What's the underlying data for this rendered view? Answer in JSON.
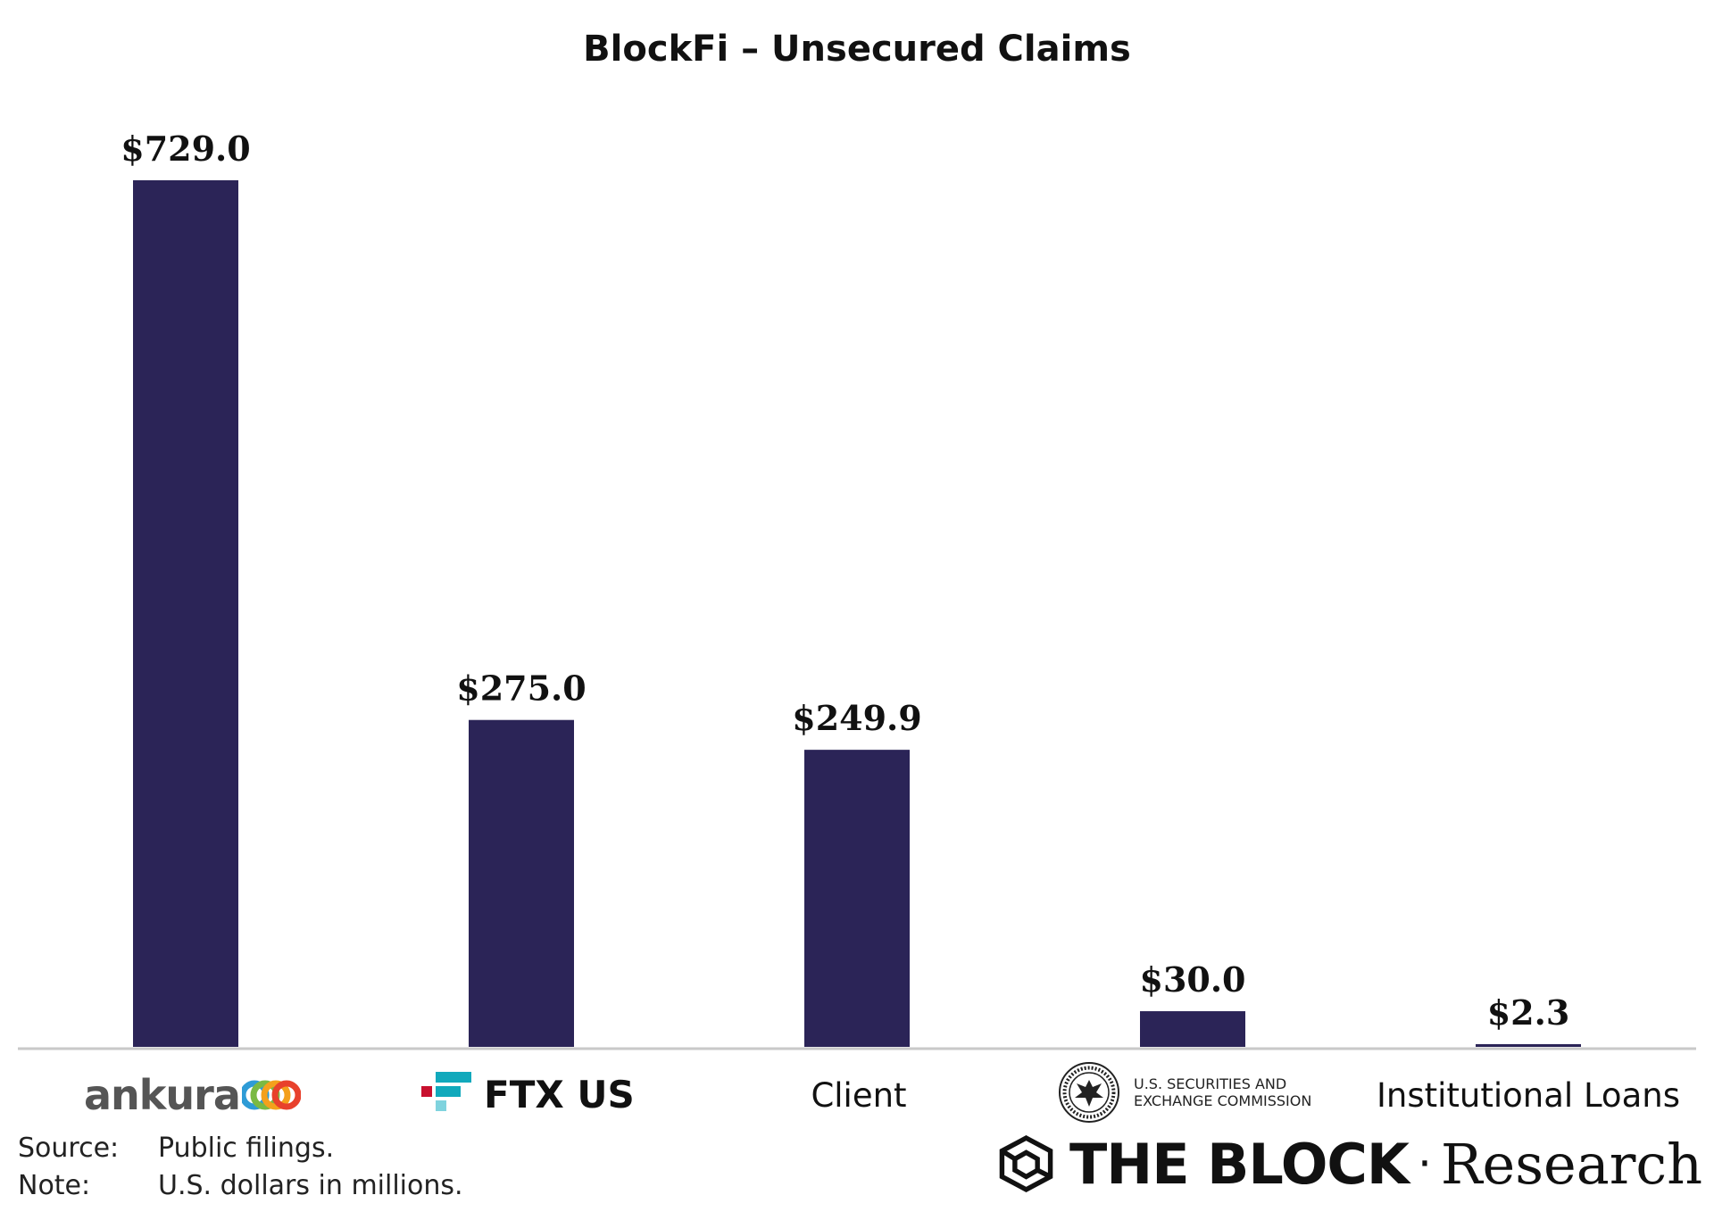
{
  "chart_data": {
    "type": "bar",
    "title": "BlockFi – Unsecured Claims",
    "categories": [
      "ankura",
      "FTX US",
      "Client",
      "U.S. SECURITIES AND EXCHANGE COMMISSION",
      "Institutional Loans"
    ],
    "values": [
      729.0,
      275.0,
      249.9,
      30.0,
      2.3
    ],
    "data_labels": [
      "$729.0",
      "$275.0",
      "$249.9",
      "$30.0",
      "$2.3"
    ],
    "xlabel": "",
    "ylabel": "",
    "ylim": [
      0,
      729.0
    ],
    "grid": false,
    "legend": "none",
    "bar_color": "#2b2457"
  },
  "categories_display": {
    "ankura": "ankura",
    "ftx": "FTX US",
    "client": "Client",
    "sec_line1": "U.S. SECURITIES AND",
    "sec_line2": "EXCHANGE COMMISSION",
    "institutional": "Institutional Loans"
  },
  "logo_colors": {
    "ankura_rings": [
      "#2e9bd6",
      "#7ab943",
      "#f4a01c",
      "#e8412c"
    ],
    "ftx_blue": "#11a9bc",
    "ftx_red": "#c8102e"
  },
  "footer": {
    "source_key": "Source:",
    "source_value": "Public filings.",
    "note_key": "Note:",
    "note_value": "U.S. dollars in millions.",
    "brand_name": "THE BLOCK",
    "brand_separator": "·",
    "brand_suffix": "Research"
  }
}
